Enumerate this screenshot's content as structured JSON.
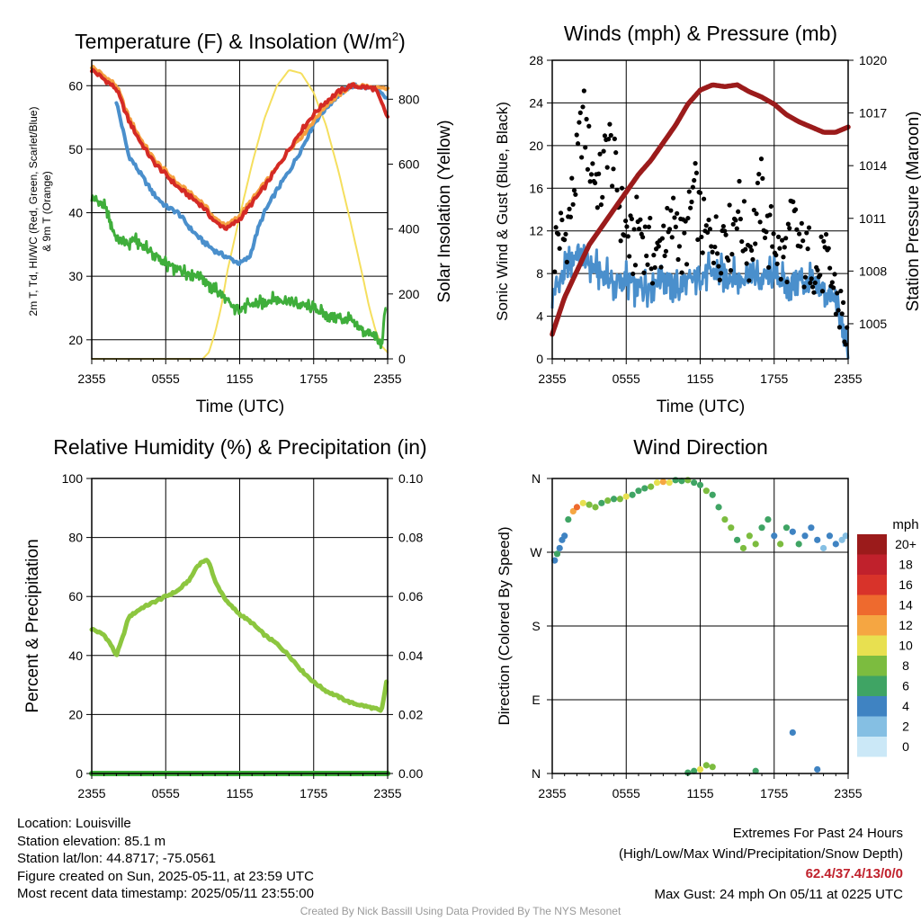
{
  "panels": {
    "temp": {
      "title": "Temperature (F) & Insolation (W/m²)",
      "title_main": "Temperature (F) & Insolation (W/m",
      "title_sup": "2",
      "title_end": ")",
      "ylabel_left_line1": "2m T, Td, HI/WC (Red, Green, Scarlet/Blue)",
      "ylabel_left_line2": "& 9m T (Orange)",
      "ylabel_right": "Solar Insolation (Yellow)",
      "xlabel": "Time (UTC)"
    },
    "wind": {
      "title": "Winds (mph) & Pressure (mb)",
      "ylabel_left": "Sonic Wind & Gust (Blue, Black)",
      "ylabel_right": "Station Pressure (Maroon)",
      "xlabel": "Time (UTC)"
    },
    "rh": {
      "title": "Relative Humidity (%) & Precipitation (in)",
      "ylabel_left": "Percent & Precipitation"
    },
    "dir": {
      "title": "Wind Direction",
      "ylabel_left": "Direction (Colored By Speed)",
      "colorbar_title": "mph"
    }
  },
  "footer": {
    "location": "Location: Louisville",
    "elevation": "Station elevation: 85.1 m",
    "latlon": "Station lat/lon: 44.8717; -75.0561",
    "created": "Figure created on Sun, 2025-05-11, at 23:59 UTC",
    "recent": "Most recent data timestamp: 2025/05/11 23:55:00",
    "extremes_title": "Extremes For Past 24 Hours",
    "extremes_sub": "(High/Low/Max Wind/Precipitation/Snow Depth)",
    "extremes_values": "62.4/37.4/13/0/0",
    "max_gust": "Max Gust: 24 mph On 05/11 at 0225 UTC",
    "credit": "Created By Nick Bassill Using Data Provided By The NYS Mesonet"
  },
  "colors": {
    "temp": "#d42a25",
    "temp_9m": "#f5a040",
    "dewpoint": "#3fae3b",
    "wind_chill": "#4a8fcc",
    "insolation": "#f5df5e",
    "sonic_wind": "#4a8fcc",
    "gust": "#000000",
    "pressure": "#9b1b1b",
    "rh": "#8cc63f",
    "precip": "#3fae3b"
  },
  "chart_data": [
    {
      "type": "line",
      "title": "Temperature (F) & Insolation (W/m²)",
      "xlabel": "Time (UTC)",
      "ylabel": "2m T, Td, HI/WC (Red, Green, Scarlet/Blue) & 9m T (Orange)",
      "y2label": "Solar Insolation (Yellow)",
      "x_ticks": [
        "2355",
        "0555",
        "1155",
        "1755",
        "2355"
      ],
      "xlim_hours": [
        0,
        24
      ],
      "ylim": [
        17,
        64
      ],
      "y_ticks": [
        20,
        30,
        40,
        50,
        60
      ],
      "y2lim": [
        0,
        920
      ],
      "y2_ticks": [
        0,
        200,
        400,
        600,
        800
      ],
      "grid": true,
      "series": [
        {
          "name": "2m T",
          "color": "#d42a25",
          "axis": "left",
          "x": [
            0,
            1,
            2,
            3,
            4,
            5,
            6,
            7,
            8,
            9,
            10,
            11,
            12,
            13,
            14,
            15,
            16,
            17,
            18,
            19,
            20,
            21,
            22,
            23,
            24
          ],
          "y": [
            62.5,
            61,
            59.5,
            54.5,
            51,
            48,
            46,
            44,
            42.5,
            41,
            38.5,
            37.5,
            39,
            41.5,
            44,
            47,
            50,
            53,
            55.5,
            57.5,
            59,
            60,
            59.8,
            59.5,
            55
          ]
        },
        {
          "name": "9m T",
          "color": "#f5a040",
          "axis": "left",
          "x": [
            0,
            1,
            2,
            3,
            4,
            5,
            6,
            7,
            8,
            9,
            10,
            11,
            12,
            13,
            14,
            15,
            16,
            17,
            18,
            19,
            20,
            21,
            22,
            23,
            24
          ],
          "y": [
            63,
            61.5,
            60,
            55,
            51.5,
            48.5,
            46.5,
            44.5,
            43,
            41.5,
            39,
            38,
            39.5,
            42,
            44.5,
            47,
            50,
            52,
            54.5,
            57,
            58.5,
            60,
            60,
            59.5,
            59.5
          ]
        },
        {
          "name": "Wind chill",
          "color": "#4a8fcc",
          "axis": "left",
          "x": [
            2,
            3,
            4,
            5,
            6,
            7,
            8,
            9,
            10,
            11,
            12,
            12.8,
            13.5,
            14,
            15,
            16,
            17,
            18,
            19,
            20,
            21,
            22,
            23,
            23.9
          ],
          "y": [
            57.5,
            49,
            46,
            43,
            41,
            40,
            37.5,
            35.5,
            34,
            33,
            32,
            33,
            37.5,
            40,
            43.5,
            46.5,
            50,
            54,
            56.5,
            58.5,
            60,
            59.8,
            59.5,
            58
          ]
        },
        {
          "name": "Dewpoint",
          "color": "#3fae3b",
          "axis": "left",
          "x": [
            0,
            1,
            1.5,
            2,
            3,
            3.3,
            4,
            5,
            6,
            7,
            8,
            9,
            9.5,
            10,
            11,
            11.5,
            12,
            13,
            14,
            15,
            16,
            17,
            18,
            19,
            20,
            21,
            22,
            23,
            23.5,
            23.9
          ],
          "y": [
            42.5,
            41,
            38.5,
            36,
            35,
            36,
            35,
            33.5,
            32,
            31,
            30.5,
            30,
            28.5,
            28,
            26,
            25,
            25,
            25.5,
            26,
            26.5,
            26,
            25.5,
            25,
            24,
            23.5,
            23,
            21.5,
            20.5,
            19,
            26
          ]
        },
        {
          "name": "Solar insolation",
          "color": "#f5df5e",
          "axis": "right",
          "x": [
            0,
            9,
            9.5,
            10,
            10.5,
            11,
            12,
            13,
            14,
            15,
            16,
            17,
            18,
            19,
            20,
            21,
            22,
            22.5,
            23,
            23.5,
            24
          ],
          "y": [
            0,
            0,
            20,
            80,
            160,
            270,
            440,
            600,
            740,
            840,
            890,
            880,
            820,
            720,
            580,
            420,
            250,
            160,
            90,
            40,
            20
          ]
        }
      ]
    },
    {
      "type": "scatter",
      "title": "Winds (mph) & Pressure (mb)",
      "xlabel": "Time (UTC)",
      "ylabel": "Sonic Wind & Gust (Blue, Black)",
      "y2label": "Station Pressure (Maroon)",
      "x_ticks": [
        "2355",
        "0555",
        "1155",
        "1755",
        "2355"
      ],
      "xlim_hours": [
        0,
        24
      ],
      "ylim": [
        0,
        28
      ],
      "y_ticks": [
        0,
        4,
        8,
        12,
        16,
        20,
        24,
        28
      ],
      "y2lim": [
        1003,
        1020
      ],
      "y2_ticks": [
        1005,
        1008,
        1011,
        1014,
        1017,
        1020
      ],
      "grid": true,
      "series": [
        {
          "name": "Station pressure",
          "color": "#9b1b1b",
          "axis": "right",
          "x": [
            0,
            1,
            2,
            3,
            4,
            5,
            6,
            7,
            8,
            9,
            10,
            11,
            12,
            13,
            14,
            15,
            16,
            17,
            18,
            19,
            20,
            21,
            22,
            23,
            24
          ],
          "y": [
            1004.4,
            1006.5,
            1008,
            1009.5,
            1010.5,
            1011.5,
            1012.5,
            1013.5,
            1014.3,
            1015.3,
            1016.3,
            1017.5,
            1018.3,
            1018.6,
            1018.5,
            1018.6,
            1018.2,
            1017.9,
            1017.5,
            1016.9,
            1016.5,
            1016.2,
            1015.9,
            1015.9,
            1016.2
          ]
        },
        {
          "name": "Sonic wind",
          "color": "#4a8fcc",
          "axis": "left",
          "x": [
            0,
            1,
            2,
            3,
            4,
            5,
            6,
            7,
            8,
            9,
            10,
            11,
            12,
            13,
            14,
            15,
            16,
            17,
            18,
            19,
            20,
            21,
            22,
            23,
            23.5,
            24
          ],
          "y": [
            6,
            8,
            10,
            9,
            8,
            7,
            7.5,
            6.5,
            7,
            8,
            6.5,
            7,
            8,
            8,
            8,
            7.5,
            8,
            7.5,
            8,
            7,
            7.5,
            7,
            6.5,
            5.5,
            3,
            0.5
          ]
        },
        {
          "name": "Gust",
          "color": "#000000",
          "axis": "left",
          "x": [
            0,
            0.5,
            1,
            1.5,
            2,
            2.5,
            3,
            3.5,
            4,
            4.5,
            5,
            5.5,
            6,
            6.5,
            7,
            7.5,
            8,
            8.5,
            9,
            9.5,
            10,
            10.5,
            11,
            11.5,
            12,
            12.5,
            13,
            13.5,
            14,
            14.5,
            15,
            15.5,
            16,
            16.5,
            17,
            17.5,
            18,
            18.5,
            19,
            19.5,
            20,
            20.5,
            21,
            21.5,
            22,
            22.5,
            23,
            23.5,
            24
          ],
          "y": [
            9,
            12,
            11,
            14,
            18,
            23,
            19,
            17,
            16,
            21,
            18,
            14,
            12,
            10,
            13,
            11,
            10,
            9,
            12,
            11,
            14,
            10,
            12,
            16,
            13,
            11,
            12,
            10,
            13,
            11,
            15,
            12,
            10,
            13,
            16,
            11,
            12,
            9,
            10,
            13,
            11,
            9,
            10,
            8,
            9,
            8,
            6,
            4,
            2
          ]
        }
      ]
    },
    {
      "type": "line",
      "title": "Relative Humidity (%) & Precipitation (in)",
      "xlabel": "",
      "ylabel": "Percent & Precipitation",
      "x_ticks": [
        "2355",
        "0555",
        "1155",
        "1755",
        "2355"
      ],
      "xlim_hours": [
        0,
        24
      ],
      "ylim": [
        0,
        100
      ],
      "y_ticks": [
        0,
        20,
        40,
        60,
        80,
        100
      ],
      "y2lim": [
        0,
        0.1
      ],
      "y2_ticks": [
        "0.00",
        "0.02",
        "0.04",
        "0.06",
        "0.08",
        "0.10"
      ],
      "grid": true,
      "series": [
        {
          "name": "Relative humidity",
          "color": "#8cc63f",
          "axis": "left",
          "x": [
            0,
            1,
            1.5,
            2,
            2.5,
            3,
            4,
            5,
            6,
            7,
            8,
            8.5,
            9,
            9.5,
            10,
            11,
            12,
            13,
            14,
            15,
            16,
            17,
            18,
            19,
            20,
            21,
            22,
            23,
            23.5,
            23.9
          ],
          "y": [
            49,
            47,
            44,
            40,
            46,
            53,
            56,
            58,
            60,
            62,
            66,
            70,
            72,
            72,
            65,
            58,
            54,
            51,
            47,
            44,
            40,
            35,
            31,
            28,
            26,
            24,
            23,
            22,
            21,
            31
          ]
        },
        {
          "name": "Precipitation",
          "color": "#3fae3b",
          "axis": "right",
          "x": [
            0,
            24
          ],
          "y": [
            0,
            0
          ]
        }
      ]
    },
    {
      "type": "scatter",
      "title": "Wind Direction",
      "ylabel": "Direction (Colored By Speed)",
      "x_ticks": [
        "2355",
        "0555",
        "1155",
        "1755",
        "2355"
      ],
      "xlim_hours": [
        0,
        24
      ],
      "y_ticks": [
        "N",
        "E",
        "S",
        "W",
        "N"
      ],
      "ylim_degrees": [
        0,
        360
      ],
      "grid": true,
      "colorbar": {
        "title": "mph",
        "labels": [
          "0",
          "2",
          "4",
          "6",
          "8",
          "10",
          "12",
          "14",
          "16",
          "18",
          "20+"
        ],
        "colors": [
          "#cbe8f7",
          "#85bfe3",
          "#3f83c2",
          "#3fa464",
          "#7cbc3f",
          "#e8e050",
          "#f5a642",
          "#ee6a2e",
          "#d8332a",
          "#c0212c",
          "#9b1b1b"
        ]
      },
      "series": [
        {
          "name": "Wind direction",
          "x": [
            0.2,
            0.4,
            0.6,
            0.8,
            1.0,
            1.3,
            1.7,
            2.0,
            2.5,
            3.0,
            3.5,
            4.0,
            4.5,
            5.0,
            5.5,
            6.0,
            6.5,
            7.0,
            7.5,
            8.0,
            8.5,
            9.0,
            9.5,
            10.0,
            10.5,
            11.0,
            11.5,
            12.0,
            12.5,
            13.0,
            13.5,
            14.0,
            14.5,
            15.0,
            15.5,
            16.0,
            16.5,
            17.0,
            17.5,
            18.0,
            18.5,
            19.0,
            19.5,
            20.0,
            20.5,
            21.0,
            21.5,
            22.0,
            22.5,
            23.0,
            23.5,
            23.8,
            11.0,
            11.5,
            12.0,
            12.5,
            13.0,
            16.5,
            21.5,
            19.5
          ],
          "y": [
            260,
            268,
            275,
            285,
            290,
            310,
            320,
            325,
            330,
            328,
            325,
            330,
            333,
            335,
            335,
            338,
            340,
            345,
            348,
            350,
            355,
            356,
            355,
            358,
            357,
            358,
            355,
            352,
            345,
            340,
            325,
            310,
            300,
            285,
            275,
            290,
            280,
            300,
            310,
            290,
            280,
            300,
            295,
            280,
            290,
            300,
            285,
            275,
            290,
            280,
            285,
            290,
            1,
            3,
            5,
            10,
            8,
            3,
            5,
            50
          ],
          "speed": [
            4,
            5,
            3,
            4,
            4,
            6,
            12,
            13,
            9,
            8,
            7,
            6,
            7,
            6,
            8,
            9,
            6,
            5,
            6,
            7,
            10,
            11,
            9,
            6,
            6,
            8,
            5,
            6,
            7,
            6,
            5,
            8,
            7,
            6,
            7,
            7,
            8,
            5,
            6,
            4,
            7,
            5,
            4,
            6,
            4,
            3,
            4,
            2,
            3,
            3,
            2,
            1,
            6,
            6,
            10,
            7,
            8,
            6,
            4,
            3
          ]
        }
      ]
    }
  ]
}
